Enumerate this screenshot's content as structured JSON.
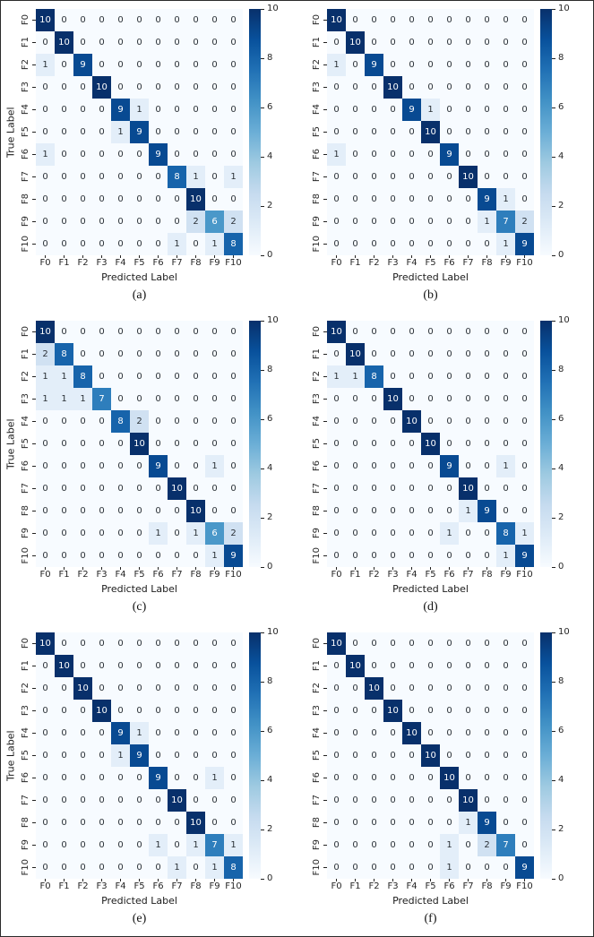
{
  "figure": {
    "xlabel": "Predicted Label",
    "ylabel": "True Label",
    "tick_labels": [
      "F0",
      "F1",
      "F2",
      "F3",
      "F4",
      "F5",
      "F6",
      "F7",
      "F8",
      "F9",
      "F10"
    ],
    "colorbar_ticks": [
      0,
      2,
      4,
      6,
      8,
      10
    ],
    "vmin": 0,
    "vmax": 10,
    "colormap": {
      "name": "Blues",
      "stops": [
        "#f7fbff",
        "#deebf7",
        "#c6dbef",
        "#9ecae1",
        "#6baed6",
        "#4292c6",
        "#2171b5",
        "#08519c",
        "#08306b"
      ]
    },
    "captions": [
      "(a)",
      "(b)",
      "(c)",
      "(d)",
      "(e)",
      "(f)"
    ]
  },
  "chart_data": [
    {
      "type": "heatmap",
      "caption": "(a)",
      "xlabel": "Predicted Label",
      "ylabel": "True Label",
      "labels": [
        "F0",
        "F1",
        "F2",
        "F3",
        "F4",
        "F5",
        "F6",
        "F7",
        "F8",
        "F9",
        "F10"
      ],
      "vmin": 0,
      "vmax": 10,
      "colorbar_ticks": [
        0,
        2,
        4,
        6,
        8,
        10
      ],
      "matrix": [
        [
          10,
          0,
          0,
          0,
          0,
          0,
          0,
          0,
          0,
          0,
          0
        ],
        [
          0,
          10,
          0,
          0,
          0,
          0,
          0,
          0,
          0,
          0,
          0
        ],
        [
          1,
          0,
          9,
          0,
          0,
          0,
          0,
          0,
          0,
          0,
          0
        ],
        [
          0,
          0,
          0,
          10,
          0,
          0,
          0,
          0,
          0,
          0,
          0
        ],
        [
          0,
          0,
          0,
          0,
          9,
          1,
          0,
          0,
          0,
          0,
          0
        ],
        [
          0,
          0,
          0,
          0,
          1,
          9,
          0,
          0,
          0,
          0,
          0
        ],
        [
          1,
          0,
          0,
          0,
          0,
          0,
          9,
          0,
          0,
          0,
          0
        ],
        [
          0,
          0,
          0,
          0,
          0,
          0,
          0,
          8,
          1,
          0,
          1
        ],
        [
          0,
          0,
          0,
          0,
          0,
          0,
          0,
          0,
          10,
          0,
          0
        ],
        [
          0,
          0,
          0,
          0,
          0,
          0,
          0,
          0,
          2,
          6,
          2
        ],
        [
          0,
          0,
          0,
          0,
          0,
          0,
          0,
          1,
          0,
          1,
          8
        ]
      ]
    },
    {
      "type": "heatmap",
      "caption": "(b)",
      "xlabel": "Predicted Label",
      "ylabel": "",
      "labels": [
        "F0",
        "F1",
        "F2",
        "F3",
        "F4",
        "F5",
        "F6",
        "F7",
        "F8",
        "F9",
        "F10"
      ],
      "vmin": 0,
      "vmax": 10,
      "colorbar_ticks": [
        0,
        2,
        4,
        6,
        8,
        10
      ],
      "matrix": [
        [
          10,
          0,
          0,
          0,
          0,
          0,
          0,
          0,
          0,
          0,
          0
        ],
        [
          0,
          10,
          0,
          0,
          0,
          0,
          0,
          0,
          0,
          0,
          0
        ],
        [
          1,
          0,
          9,
          0,
          0,
          0,
          0,
          0,
          0,
          0,
          0
        ],
        [
          0,
          0,
          0,
          10,
          0,
          0,
          0,
          0,
          0,
          0,
          0
        ],
        [
          0,
          0,
          0,
          0,
          9,
          1,
          0,
          0,
          0,
          0,
          0
        ],
        [
          0,
          0,
          0,
          0,
          0,
          10,
          0,
          0,
          0,
          0,
          0
        ],
        [
          1,
          0,
          0,
          0,
          0,
          0,
          9,
          0,
          0,
          0,
          0
        ],
        [
          0,
          0,
          0,
          0,
          0,
          0,
          0,
          10,
          0,
          0,
          0
        ],
        [
          0,
          0,
          0,
          0,
          0,
          0,
          0,
          0,
          9,
          1,
          0
        ],
        [
          0,
          0,
          0,
          0,
          0,
          0,
          0,
          0,
          1,
          7,
          2
        ],
        [
          0,
          0,
          0,
          0,
          0,
          0,
          0,
          0,
          0,
          1,
          9
        ]
      ]
    },
    {
      "type": "heatmap",
      "caption": "(c)",
      "xlabel": "Predicted Label",
      "ylabel": "True Label",
      "labels": [
        "F0",
        "F1",
        "F2",
        "F3",
        "F4",
        "F5",
        "F6",
        "F7",
        "F8",
        "F9",
        "F10"
      ],
      "vmin": 0,
      "vmax": 10,
      "colorbar_ticks": [
        0,
        2,
        4,
        6,
        8,
        10
      ],
      "matrix": [
        [
          10,
          0,
          0,
          0,
          0,
          0,
          0,
          0,
          0,
          0,
          0
        ],
        [
          2,
          8,
          0,
          0,
          0,
          0,
          0,
          0,
          0,
          0,
          0
        ],
        [
          1,
          1,
          8,
          0,
          0,
          0,
          0,
          0,
          0,
          0,
          0
        ],
        [
          1,
          1,
          1,
          7,
          0,
          0,
          0,
          0,
          0,
          0,
          0
        ],
        [
          0,
          0,
          0,
          0,
          8,
          2,
          0,
          0,
          0,
          0,
          0
        ],
        [
          0,
          0,
          0,
          0,
          0,
          10,
          0,
          0,
          0,
          0,
          0
        ],
        [
          0,
          0,
          0,
          0,
          0,
          0,
          9,
          0,
          0,
          1,
          0
        ],
        [
          0,
          0,
          0,
          0,
          0,
          0,
          0,
          10,
          0,
          0,
          0
        ],
        [
          0,
          0,
          0,
          0,
          0,
          0,
          0,
          0,
          10,
          0,
          0
        ],
        [
          0,
          0,
          0,
          0,
          0,
          0,
          1,
          0,
          1,
          6,
          2
        ],
        [
          0,
          0,
          0,
          0,
          0,
          0,
          0,
          0,
          0,
          1,
          9
        ]
      ]
    },
    {
      "type": "heatmap",
      "caption": "(d)",
      "xlabel": "Predicted Label",
      "ylabel": "",
      "labels": [
        "F0",
        "F1",
        "F2",
        "F3",
        "F4",
        "F5",
        "F6",
        "F7",
        "F8",
        "F9",
        "F10"
      ],
      "vmin": 0,
      "vmax": 10,
      "colorbar_ticks": [
        0,
        2,
        4,
        6,
        8,
        10
      ],
      "matrix": [
        [
          10,
          0,
          0,
          0,
          0,
          0,
          0,
          0,
          0,
          0,
          0
        ],
        [
          0,
          10,
          0,
          0,
          0,
          0,
          0,
          0,
          0,
          0,
          0
        ],
        [
          1,
          1,
          8,
          0,
          0,
          0,
          0,
          0,
          0,
          0,
          0
        ],
        [
          0,
          0,
          0,
          10,
          0,
          0,
          0,
          0,
          0,
          0,
          0
        ],
        [
          0,
          0,
          0,
          0,
          10,
          0,
          0,
          0,
          0,
          0,
          0
        ],
        [
          0,
          0,
          0,
          0,
          0,
          10,
          0,
          0,
          0,
          0,
          0
        ],
        [
          0,
          0,
          0,
          0,
          0,
          0,
          9,
          0,
          0,
          1,
          0
        ],
        [
          0,
          0,
          0,
          0,
          0,
          0,
          0,
          10,
          0,
          0,
          0
        ],
        [
          0,
          0,
          0,
          0,
          0,
          0,
          0,
          1,
          9,
          0,
          0
        ],
        [
          0,
          0,
          0,
          0,
          0,
          0,
          1,
          0,
          0,
          8,
          1
        ],
        [
          0,
          0,
          0,
          0,
          0,
          0,
          0,
          0,
          0,
          1,
          9
        ]
      ]
    },
    {
      "type": "heatmap",
      "caption": "(e)",
      "xlabel": "Predicted Label",
      "ylabel": "True Label",
      "labels": [
        "F0",
        "F1",
        "F2",
        "F3",
        "F4",
        "F5",
        "F6",
        "F7",
        "F8",
        "F9",
        "F10"
      ],
      "vmin": 0,
      "vmax": 10,
      "colorbar_ticks": [
        0,
        2,
        4,
        6,
        8,
        10
      ],
      "matrix": [
        [
          10,
          0,
          0,
          0,
          0,
          0,
          0,
          0,
          0,
          0,
          0
        ],
        [
          0,
          10,
          0,
          0,
          0,
          0,
          0,
          0,
          0,
          0,
          0
        ],
        [
          0,
          0,
          10,
          0,
          0,
          0,
          0,
          0,
          0,
          0,
          0
        ],
        [
          0,
          0,
          0,
          10,
          0,
          0,
          0,
          0,
          0,
          0,
          0
        ],
        [
          0,
          0,
          0,
          0,
          9,
          1,
          0,
          0,
          0,
          0,
          0
        ],
        [
          0,
          0,
          0,
          0,
          1,
          9,
          0,
          0,
          0,
          0,
          0
        ],
        [
          0,
          0,
          0,
          0,
          0,
          0,
          9,
          0,
          0,
          1,
          0
        ],
        [
          0,
          0,
          0,
          0,
          0,
          0,
          0,
          10,
          0,
          0,
          0
        ],
        [
          0,
          0,
          0,
          0,
          0,
          0,
          0,
          0,
          10,
          0,
          0
        ],
        [
          0,
          0,
          0,
          0,
          0,
          0,
          1,
          0,
          1,
          7,
          1
        ],
        [
          0,
          0,
          0,
          0,
          0,
          0,
          0,
          1,
          0,
          1,
          8
        ]
      ]
    },
    {
      "type": "heatmap",
      "caption": "(f)",
      "xlabel": "Predicted Label",
      "ylabel": "",
      "labels": [
        "F0",
        "F1",
        "F2",
        "F3",
        "F4",
        "F5",
        "F6",
        "F7",
        "F8",
        "F9",
        "F10"
      ],
      "vmin": 0,
      "vmax": 10,
      "colorbar_ticks": [
        0,
        2,
        4,
        6,
        8,
        10
      ],
      "matrix": [
        [
          10,
          0,
          0,
          0,
          0,
          0,
          0,
          0,
          0,
          0,
          0
        ],
        [
          0,
          10,
          0,
          0,
          0,
          0,
          0,
          0,
          0,
          0,
          0
        ],
        [
          0,
          0,
          10,
          0,
          0,
          0,
          0,
          0,
          0,
          0,
          0
        ],
        [
          0,
          0,
          0,
          10,
          0,
          0,
          0,
          0,
          0,
          0,
          0
        ],
        [
          0,
          0,
          0,
          0,
          10,
          0,
          0,
          0,
          0,
          0,
          0
        ],
        [
          0,
          0,
          0,
          0,
          0,
          10,
          0,
          0,
          0,
          0,
          0
        ],
        [
          0,
          0,
          0,
          0,
          0,
          0,
          10,
          0,
          0,
          0,
          0
        ],
        [
          0,
          0,
          0,
          0,
          0,
          0,
          0,
          10,
          0,
          0,
          0
        ],
        [
          0,
          0,
          0,
          0,
          0,
          0,
          0,
          1,
          9,
          0,
          0
        ],
        [
          0,
          0,
          0,
          0,
          0,
          0,
          1,
          0,
          2,
          7,
          0
        ],
        [
          0,
          0,
          0,
          0,
          0,
          0,
          1,
          0,
          0,
          0,
          9
        ]
      ]
    }
  ]
}
